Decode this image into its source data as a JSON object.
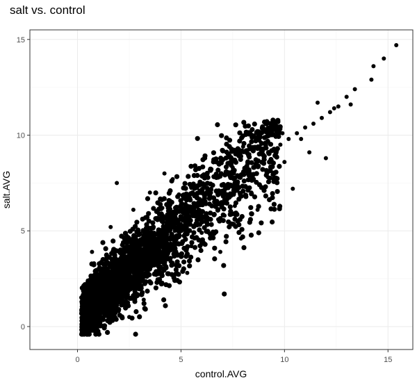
{
  "chart_data": {
    "type": "scatter",
    "title": "salt vs. control",
    "xlabel": "control.AVG",
    "ylabel": "salt.AVG",
    "xlim": [
      -2.3,
      16.2
    ],
    "ylim": [
      -1.2,
      15.5
    ],
    "x_ticks": [
      0,
      5,
      10,
      15
    ],
    "y_ticks": [
      0,
      5,
      10,
      15
    ],
    "x_tick_labels": [
      "0",
      "5",
      "10",
      "15"
    ],
    "y_tick_labels": [
      "0",
      "5",
      "10",
      "15"
    ],
    "grid": true,
    "legend": "none",
    "point_color": "#000000",
    "panel_border_color": "#333333",
    "grid_major_color": "#ebebeb",
    "grid_minor_color": "#f5f5f5",
    "series": [
      {
        "x": [
          1.0,
          1.2,
          1.5,
          1.8,
          2.0,
          2.3,
          2.6,
          3.0,
          3.3,
          3.6,
          4.0,
          4.3,
          4.7,
          5.0,
          5.4,
          5.8,
          6.2,
          6.6,
          7.0,
          7.4,
          7.8,
          8.2,
          8.6,
          9.0,
          9.4,
          9.8,
          10.2,
          10.6,
          11.0,
          11.4,
          11.8,
          12.2,
          12.6,
          13.0,
          13.4,
          14.2,
          14.3,
          14.8,
          15.4,
          13.2,
          12.4,
          11.6,
          0.4,
          0.6,
          0.9,
          1.1,
          0.8,
          1.7,
          2.4,
          3.1,
          3.8,
          4.5,
          5.2,
          6.0,
          6.8,
          7.6,
          8.4,
          9.2,
          10.0,
          11.2,
          0.2,
          0.5,
          1.3,
          2.1,
          2.9,
          3.7,
          4.4,
          5.1,
          5.9,
          6.7,
          7.5,
          8.3,
          9.1,
          9.9,
          10.8,
          1.4,
          2.2,
          3.4,
          4.1,
          4.9,
          5.6,
          6.4,
          7.2,
          8.0,
          8.8,
          0.7,
          1.6,
          2.7,
          3.5,
          4.6,
          5.5,
          6.3,
          7.1,
          2.5,
          5.3,
          7.9,
          10.4,
          12.0,
          3.2,
          6.9,
          1.9,
          4.2,
          8.7
        ],
        "y": [
          0.8,
          1.2,
          1.5,
          1.9,
          2.2,
          2.6,
          2.9,
          3.2,
          3.6,
          3.9,
          4.3,
          4.6,
          5.0,
          5.3,
          5.7,
          6.0,
          6.4,
          6.7,
          7.1,
          7.4,
          7.8,
          8.1,
          8.5,
          8.8,
          9.2,
          9.5,
          9.8,
          10.1,
          10.4,
          10.6,
          10.9,
          11.2,
          11.5,
          12.0,
          12.4,
          12.9,
          13.6,
          14.0,
          14.7,
          11.6,
          11.4,
          11.7,
          1.9,
          1.2,
          0.5,
          2.6,
          3.3,
          0.3,
          1.1,
          2.0,
          2.7,
          3.4,
          4.1,
          4.9,
          5.6,
          6.3,
          7.0,
          7.8,
          8.6,
          9.1,
          0.9,
          2.4,
          2.0,
          3.0,
          4.1,
          4.9,
          5.5,
          6.4,
          7.1,
          7.9,
          8.3,
          9.0,
          9.6,
          10.1,
          9.8,
          3.6,
          4.4,
          5.0,
          6.2,
          6.9,
          7.4,
          8.2,
          8.8,
          9.4,
          9.7,
          3.9,
          5.2,
          6.1,
          7.0,
          7.7,
          4.2,
          5.0,
          5.8,
          0.5,
          2.8,
          4.6,
          7.2,
          8.8,
          1.4,
          3.9,
          7.5,
          8.0,
          6.1
        ]
      }
    ]
  }
}
